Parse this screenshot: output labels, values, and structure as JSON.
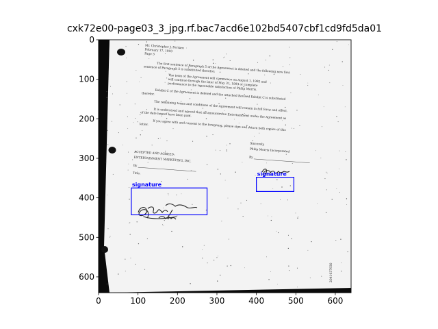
{
  "figure": {
    "title": "cxk72e00-page03_3_jpg.rf.bac7acd6e102bd5407cbf1cd9fd5da01"
  },
  "axes": {
    "x_ticks": [
      "0",
      "100",
      "200",
      "300",
      "400",
      "500",
      "600"
    ],
    "y_ticks": [
      "0",
      "100",
      "200",
      "300",
      "400",
      "500",
      "600"
    ]
  },
  "document": {
    "header_lines": [
      "Mr. Christopher J. Ferraro",
      "February 17, 1993",
      "Page 3"
    ],
    "para1": [
      "The first sentence of Paragraph 5 of the Agreement is deleted and the following new first",
      "sentence of Paragraph 5 is substituted therefor:"
    ],
    "para2": [
      "The term of the Agreement will commence on August 1, 1992 and",
      "will continue through the later of May 31, 1993 or complete",
      "performance to the reasonable satisfaction of Philip Morris."
    ],
    "para3": [
      "Exhibit C of the Agreement is deleted and the attached Revised Exhibit C is substituted",
      "therefor."
    ],
    "para4": [
      "The remaining terms and conditions of the Agreement will remain in full force and effect.",
      "It is understood and agreed that all amounts due Entertainment under the Agreement as",
      "of the date hereof have been paid."
    ],
    "para5": [
      "If you agree with and consent to the foregoing, please sign and return both copies of this",
      "letter."
    ],
    "closing": [
      "Sincerely,",
      "Philip Morris Incorporated"
    ],
    "by_label": "By",
    "accepted": "ACCEPTED AND AGREED:",
    "company": "ENTERTAINMENT MARKETING, INC.",
    "by_label_2": "By",
    "title_label": "Title:",
    "bates": "2041037930"
  },
  "annotations": [
    {
      "label": "signature",
      "bbox_data": [
        400,
        348,
        495,
        384
      ]
    },
    {
      "label": "signature",
      "bbox_data": [
        83,
        375,
        275,
        443
      ]
    }
  ],
  "colors": {
    "annotation": "#0000ff",
    "background_scan": "#0a0a0a",
    "paper": "#f4f4f4"
  }
}
